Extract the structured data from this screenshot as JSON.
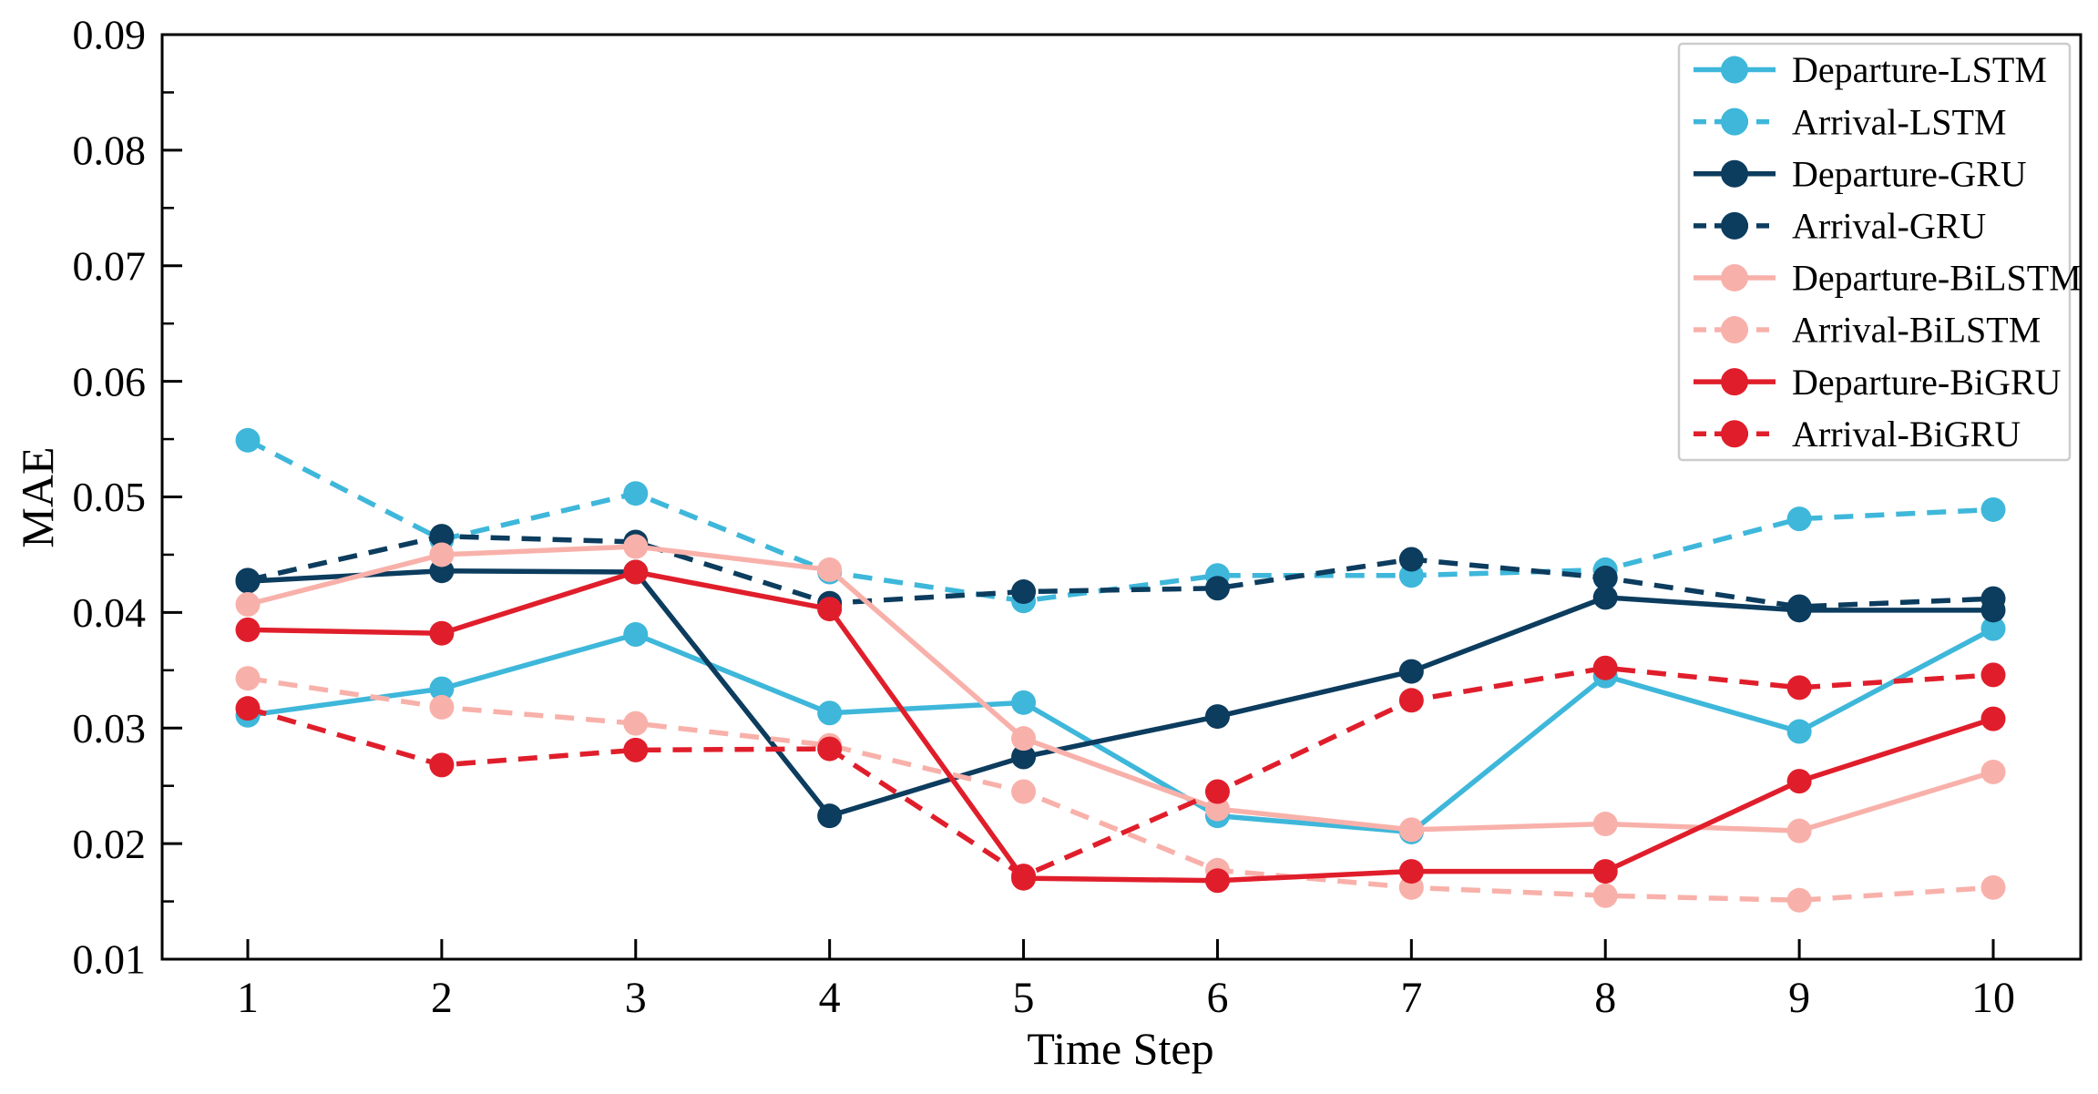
{
  "chart_data": {
    "type": "line",
    "title": "",
    "xlabel": "Time Step",
    "ylabel": "MAE",
    "x": [
      1,
      2,
      3,
      4,
      5,
      6,
      7,
      8,
      9,
      10
    ],
    "ylim": [
      0.01,
      0.09
    ],
    "y_ticks": [
      0.01,
      0.02,
      0.03,
      0.04,
      0.05,
      0.06,
      0.07,
      0.08,
      0.09
    ],
    "y_tick_labels": [
      "0.01",
      "0.02",
      "0.03",
      "0.04",
      "0.05",
      "0.06",
      "0.07",
      "0.08",
      "0.09"
    ],
    "x_tick_labels": [
      "1",
      "2",
      "3",
      "4",
      "5",
      "6",
      "7",
      "8",
      "9",
      "10"
    ],
    "grid": false,
    "legend_position": "upper right",
    "series": [
      {
        "name": "Departure-LSTM",
        "color": "#3eb7da",
        "style": "solid",
        "values": [
          0.0311,
          0.0334,
          0.0381,
          0.0313,
          0.0322,
          0.0224,
          0.021,
          0.0345,
          0.0297,
          0.0386
        ]
      },
      {
        "name": "Arrival-LSTM",
        "color": "#3eb7da",
        "style": "dashed",
        "values": [
          0.0549,
          0.0463,
          0.0503,
          0.0435,
          0.041,
          0.0432,
          0.0432,
          0.0437,
          0.0481,
          0.0489
        ]
      },
      {
        "name": "Departure-GRU",
        "color": "#0c3c5e",
        "style": "solid",
        "values": [
          0.0427,
          0.0436,
          0.0435,
          0.0224,
          0.0275,
          0.031,
          0.0349,
          0.0413,
          0.0402,
          0.0402
        ]
      },
      {
        "name": "Arrival-GRU",
        "color": "#0c3c5e",
        "style": "dashed",
        "values": [
          0.0428,
          0.0466,
          0.0461,
          0.0408,
          0.0418,
          0.0421,
          0.0446,
          0.043,
          0.0405,
          0.0412
        ]
      },
      {
        "name": "Departure-BiLSTM",
        "color": "#f8b1aa",
        "style": "solid",
        "values": [
          0.0407,
          0.045,
          0.0457,
          0.0437,
          0.0291,
          0.023,
          0.0212,
          0.0217,
          0.0211,
          0.0262
        ]
      },
      {
        "name": "Arrival-BiLSTM",
        "color": "#f8b1aa",
        "style": "dashed",
        "values": [
          0.0343,
          0.0318,
          0.0304,
          0.0285,
          0.0245,
          0.0177,
          0.0162,
          0.0155,
          0.0151,
          0.0162
        ]
      },
      {
        "name": "Departure-BiGRU",
        "color": "#e01e2b",
        "style": "solid",
        "values": [
          0.0385,
          0.0382,
          0.0435,
          0.0403,
          0.017,
          0.0168,
          0.0176,
          0.0176,
          0.0254,
          0.0308
        ]
      },
      {
        "name": "Arrival-BiGRU",
        "color": "#e01e2b",
        "style": "dashed",
        "values": [
          0.0317,
          0.0268,
          0.0281,
          0.0282,
          0.0172,
          0.0245,
          0.0324,
          0.0352,
          0.0335,
          0.0346
        ]
      }
    ],
    "axis_color": "#000000",
    "legend_border_color": "#cccccc",
    "legend_background": "#ffffff"
  }
}
